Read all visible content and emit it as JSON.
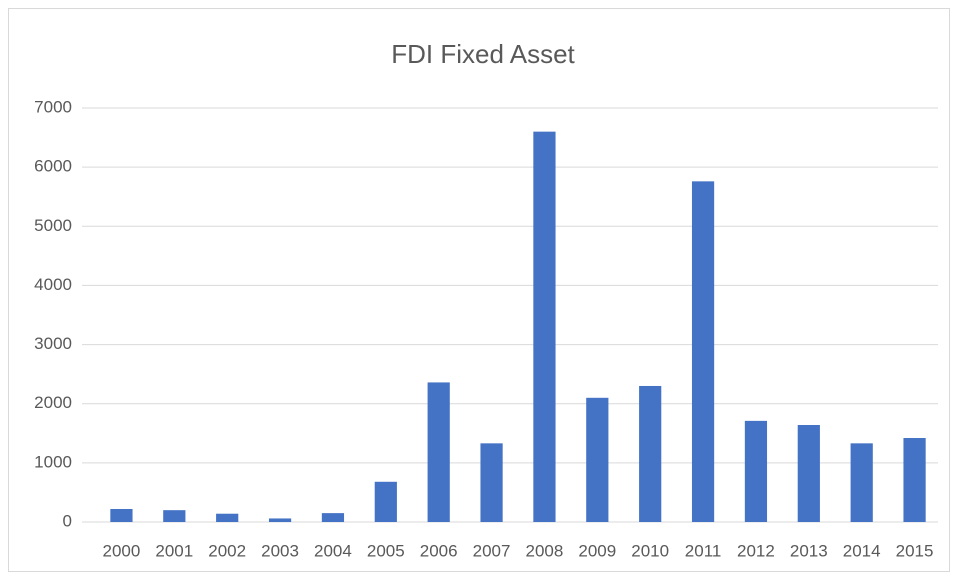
{
  "chart_data": {
    "type": "bar",
    "title": "FDI Fixed Asset",
    "categories": [
      "2000",
      "2001",
      "2002",
      "2003",
      "2004",
      "2005",
      "2006",
      "2007",
      "2008",
      "2009",
      "2010",
      "2011",
      "2012",
      "2013",
      "2014",
      "2015"
    ],
    "values": [
      220,
      200,
      140,
      60,
      150,
      680,
      2360,
      1330,
      6600,
      2100,
      2300,
      5760,
      1710,
      1640,
      1330,
      1420
    ],
    "color": "#4472c4",
    "ylim": [
      0,
      7000
    ],
    "yticks": [
      0,
      1000,
      2000,
      3000,
      4000,
      5000,
      6000,
      7000
    ],
    "grid": true
  }
}
